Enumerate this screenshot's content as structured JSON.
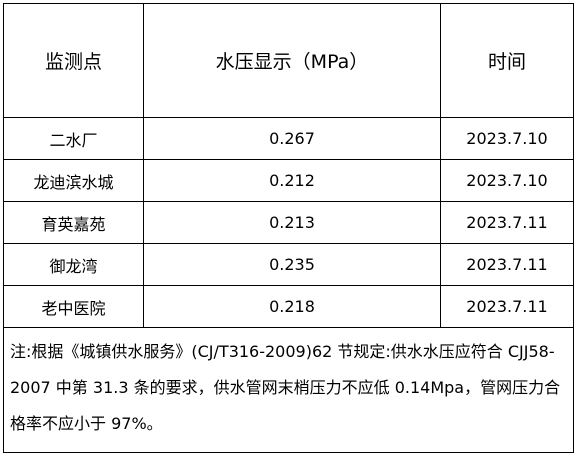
{
  "table": {
    "header": [
      "监测点",
      "水压显示（MPa）",
      "时间"
    ],
    "rows": [
      [
        "二水厂",
        "0.267",
        "2023.7.10"
      ],
      [
        "龙迪滨水城",
        "0.212",
        "2023.7.10"
      ],
      [
        "育英嘉苑",
        "0.213",
        "2023.7.11"
      ],
      [
        "御龙湾",
        "0.235",
        "2023.7.11"
      ],
      [
        "老中医院",
        "0.218",
        "2023.7.11"
      ]
    ],
    "note": "注:根据《城镇供水服务》(CJ/T316-2009)62 节规定:供水水压应符合 CJJ58-2007 中第 31.3 条的要求，供水管网末梢压力不应低 0.14Mpa，管网压力合格率不应小于 97%。"
  }
}
